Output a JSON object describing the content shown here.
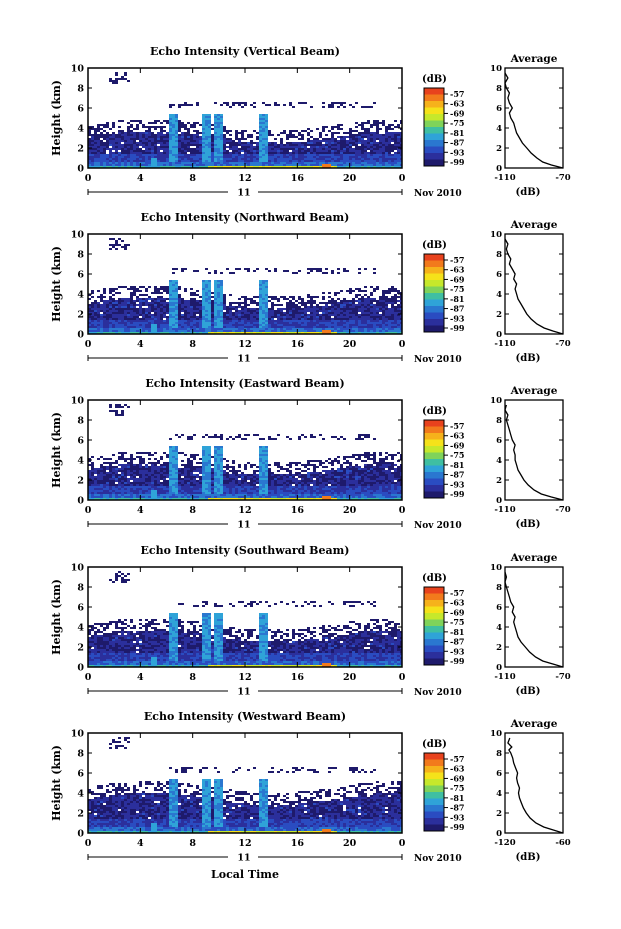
{
  "figure": {
    "xlabel": "Local Time",
    "date_label": "Nov 2010",
    "day_label": "11",
    "colorbar_unit": "(dB)",
    "colorbar_ticks": [
      "-57",
      "-63",
      "-69",
      "-75",
      "-81",
      "-87",
      "-93",
      "-99"
    ],
    "colorbar_colors": [
      "#e8421d",
      "#f27a1c",
      "#f6b21b",
      "#f5e21a",
      "#c6e82b",
      "#7fd35a",
      "#3fbfa2",
      "#2fa3d8",
      "#2a77d0",
      "#2a4cc1",
      "#2b2f9c",
      "#1e1a6b"
    ],
    "avg_title": "Average",
    "avg_xlabel": "(dB)",
    "ylabel": "Height (km)"
  },
  "chart_data": [
    {
      "type": "heatmap",
      "title": "Echo Intensity (Vertical Beam)",
      "x_ticks": [
        "0",
        "4",
        "8",
        "12",
        "16",
        "20",
        "0"
      ],
      "y_ticks": [
        "0",
        "2",
        "4",
        "6",
        "8",
        "10"
      ],
      "xlim": [
        0,
        24
      ],
      "ylim": [
        0,
        10
      ],
      "avg_profile": {
        "xlim": [
          -110,
          -70
        ],
        "x_ticks": [
          "-110",
          "-70"
        ],
        "y_ticks": [
          "0",
          "2",
          "4",
          "6",
          "8",
          "10"
        ],
        "points": [
          [
            -70,
            0
          ],
          [
            -78,
            0.3
          ],
          [
            -84,
            0.6
          ],
          [
            -88,
            1
          ],
          [
            -92,
            1.5
          ],
          [
            -95,
            2
          ],
          [
            -98,
            2.5
          ],
          [
            -100,
            3
          ],
          [
            -102,
            3.5
          ],
          [
            -103,
            4
          ],
          [
            -104,
            4.5
          ],
          [
            -106,
            5
          ],
          [
            -107,
            5.5
          ],
          [
            -105,
            6
          ],
          [
            -107,
            6.5
          ],
          [
            -108,
            7
          ],
          [
            -107,
            7.5
          ],
          [
            -109,
            8
          ],
          [
            -110,
            8.5
          ],
          [
            -108,
            9
          ],
          [
            -110,
            9.5
          ]
        ]
      }
    },
    {
      "type": "heatmap",
      "title": "Echo Intensity (Northward Beam)",
      "x_ticks": [
        "0",
        "4",
        "8",
        "12",
        "16",
        "20",
        "0"
      ],
      "y_ticks": [
        "0",
        "2",
        "4",
        "6",
        "8",
        "10"
      ],
      "xlim": [
        0,
        24
      ],
      "ylim": [
        0,
        10
      ],
      "avg_profile": {
        "xlim": [
          -110,
          -70
        ],
        "x_ticks": [
          "-110",
          "-70"
        ],
        "y_ticks": [
          "0",
          "2",
          "4",
          "6",
          "8",
          "10"
        ],
        "points": [
          [
            -70,
            0
          ],
          [
            -77,
            0.3
          ],
          [
            -83,
            0.6
          ],
          [
            -88,
            1
          ],
          [
            -92,
            1.5
          ],
          [
            -95,
            2
          ],
          [
            -97,
            2.5
          ],
          [
            -99,
            3
          ],
          [
            -101,
            3.5
          ],
          [
            -102,
            4
          ],
          [
            -103,
            4.5
          ],
          [
            -102,
            5
          ],
          [
            -104,
            5.5
          ],
          [
            -103,
            6
          ],
          [
            -105,
            6.5
          ],
          [
            -107,
            7
          ],
          [
            -106,
            7.5
          ],
          [
            -108,
            8
          ],
          [
            -109,
            8.5
          ],
          [
            -108,
            9
          ],
          [
            -110,
            9.5
          ]
        ]
      }
    },
    {
      "type": "heatmap",
      "title": "Echo Intensity (Eastward Beam)",
      "x_ticks": [
        "0",
        "4",
        "8",
        "12",
        "16",
        "20",
        "0"
      ],
      "y_ticks": [
        "0",
        "2",
        "4",
        "6",
        "8",
        "10"
      ],
      "xlim": [
        0,
        24
      ],
      "ylim": [
        0,
        10
      ],
      "avg_profile": {
        "xlim": [
          -110,
          -70
        ],
        "x_ticks": [
          "-110",
          "-70"
        ],
        "y_ticks": [
          "0",
          "2",
          "4",
          "6",
          "8",
          "10"
        ],
        "points": [
          [
            -70,
            0
          ],
          [
            -78,
            0.3
          ],
          [
            -85,
            0.6
          ],
          [
            -90,
            1
          ],
          [
            -94,
            1.5
          ],
          [
            -97,
            2
          ],
          [
            -99,
            2.5
          ],
          [
            -101,
            3
          ],
          [
            -102,
            3.5
          ],
          [
            -103,
            4
          ],
          [
            -103,
            4.5
          ],
          [
            -104,
            5
          ],
          [
            -103,
            5.5
          ],
          [
            -105,
            6
          ],
          [
            -106,
            6.5
          ],
          [
            -107,
            7
          ],
          [
            -108,
            7.5
          ],
          [
            -109,
            8
          ],
          [
            -108,
            8.5
          ],
          [
            -110,
            9
          ],
          [
            -109,
            9.5
          ]
        ]
      }
    },
    {
      "type": "heatmap",
      "title": "Echo Intensity (Southward Beam)",
      "x_ticks": [
        "0",
        "4",
        "8",
        "12",
        "16",
        "20",
        "0"
      ],
      "y_ticks": [
        "0",
        "2",
        "4",
        "6",
        "8",
        "10"
      ],
      "xlim": [
        0,
        24
      ],
      "ylim": [
        0,
        10
      ],
      "avg_profile": {
        "xlim": [
          -110,
          -70
        ],
        "x_ticks": [
          "-110",
          "-70"
        ],
        "y_ticks": [
          "0",
          "2",
          "4",
          "6",
          "8",
          "10"
        ],
        "points": [
          [
            -70,
            0
          ],
          [
            -77,
            0.3
          ],
          [
            -84,
            0.6
          ],
          [
            -89,
            1
          ],
          [
            -93,
            1.5
          ],
          [
            -96,
            2
          ],
          [
            -99,
            2.5
          ],
          [
            -101,
            3
          ],
          [
            -102,
            3.5
          ],
          [
            -103,
            4
          ],
          [
            -104,
            4.5
          ],
          [
            -103,
            5
          ],
          [
            -105,
            5.5
          ],
          [
            -104,
            6
          ],
          [
            -106,
            6.5
          ],
          [
            -107,
            7
          ],
          [
            -108,
            7.5
          ],
          [
            -109,
            8
          ],
          [
            -110,
            8.5
          ],
          [
            -109,
            9
          ],
          [
            -110,
            9.5
          ]
        ]
      }
    },
    {
      "type": "heatmap",
      "title": "Echo Intensity (Westward Beam)",
      "x_ticks": [
        "0",
        "4",
        "8",
        "12",
        "16",
        "20",
        "0"
      ],
      "y_ticks": [
        "0",
        "2",
        "4",
        "6",
        "8",
        "10"
      ],
      "xlim": [
        0,
        24
      ],
      "ylim": [
        0,
        10
      ],
      "avg_profile": {
        "xlim": [
          -120,
          -60
        ],
        "x_ticks": [
          "-120",
          "-60"
        ],
        "y_ticks": [
          "0",
          "2",
          "4",
          "6",
          "8",
          "10"
        ],
        "points": [
          [
            -60,
            0
          ],
          [
            -70,
            0.3
          ],
          [
            -80,
            0.6
          ],
          [
            -88,
            1
          ],
          [
            -94,
            1.5
          ],
          [
            -98,
            2
          ],
          [
            -101,
            2.5
          ],
          [
            -103,
            3
          ],
          [
            -105,
            3.5
          ],
          [
            -106,
            4
          ],
          [
            -105,
            4.5
          ],
          [
            -107,
            5
          ],
          [
            -108,
            5.5
          ],
          [
            -107,
            6
          ],
          [
            -109,
            6.5
          ],
          [
            -111,
            7
          ],
          [
            -112,
            7.5
          ],
          [
            -114,
            8
          ],
          [
            -116,
            8.3
          ],
          [
            -113,
            8.6
          ],
          [
            -117,
            9
          ],
          [
            -115,
            9.5
          ]
        ]
      }
    }
  ]
}
